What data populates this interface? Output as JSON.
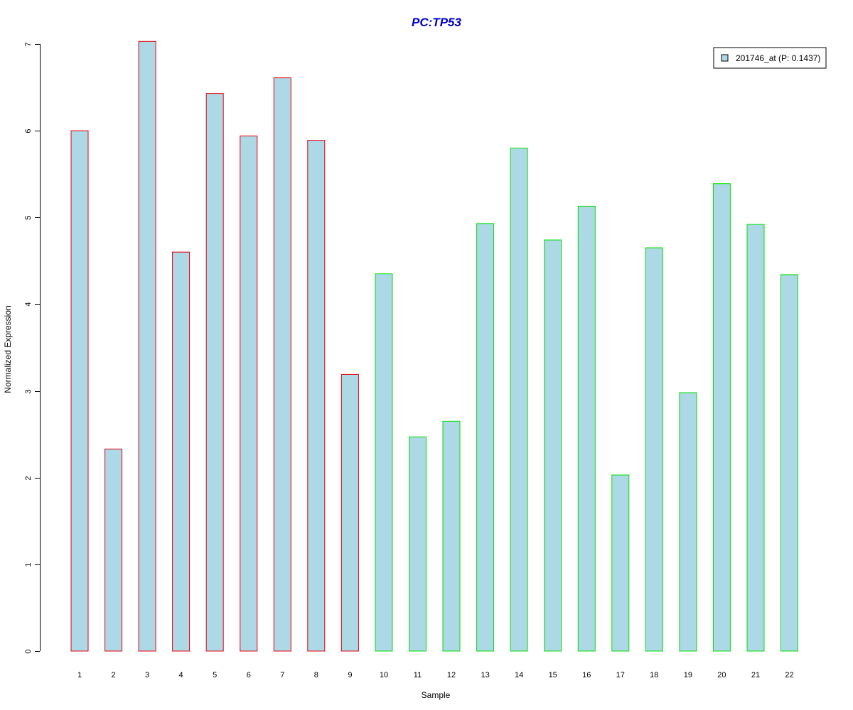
{
  "chart_data": {
    "type": "bar",
    "title": "PC:TP53",
    "title_color": "#0000CD",
    "xlabel": "Sample",
    "ylabel": "Normalized Expression",
    "ylim": [
      0,
      7
    ],
    "yticks": [
      0,
      1,
      2,
      3,
      4,
      5,
      6,
      7
    ],
    "categories": [
      "1",
      "2",
      "3",
      "4",
      "5",
      "6",
      "7",
      "8",
      "9",
      "10",
      "11",
      "12",
      "13",
      "14",
      "15",
      "16",
      "17",
      "18",
      "19",
      "20",
      "21",
      "22"
    ],
    "values": [
      6.0,
      2.33,
      7.03,
      4.6,
      6.43,
      5.94,
      6.61,
      5.89,
      3.19,
      4.35,
      2.47,
      2.65,
      4.93,
      5.8,
      4.74,
      5.13,
      2.03,
      4.65,
      2.98,
      5.39,
      4.92,
      4.34
    ],
    "border_groups": [
      "red",
      "red",
      "red",
      "red",
      "red",
      "red",
      "red",
      "red",
      "red",
      "green",
      "green",
      "green",
      "green",
      "green",
      "green",
      "green",
      "green",
      "green",
      "green",
      "green",
      "green",
      "green"
    ],
    "fill_color": "#ADD8E6",
    "group_colors": {
      "red": "#E8000B",
      "green": "#00E000"
    },
    "legend": {
      "label": "201746_at (P: 0.1437)",
      "position": "top-right"
    },
    "grid": false
  }
}
